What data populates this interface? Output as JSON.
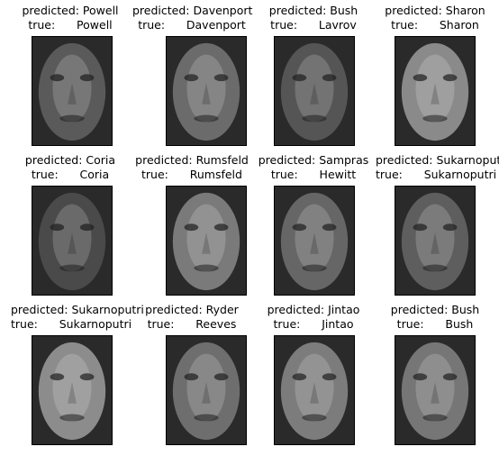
{
  "gallery": {
    "items": [
      {
        "predicted": "predicted: Powell",
        "true": "true:      Powell",
        "tone": "#5a5a5a"
      },
      {
        "predicted": "predicted: Davenport",
        "true": "true:      Davenport",
        "tone": "#6b6b6b"
      },
      {
        "predicted": "predicted: Bush",
        "true": "true:      Lavrov",
        "tone": "#555555"
      },
      {
        "predicted": "predicted: Sharon",
        "true": "true:      Sharon",
        "tone": "#8a8a8a"
      },
      {
        "predicted": "predicted: Coria",
        "true": "true:      Coria",
        "tone": "#4a4a4a"
      },
      {
        "predicted": "predicted: Rumsfeld",
        "true": "true:      Rumsfeld",
        "tone": "#7a7a7a"
      },
      {
        "predicted": "predicted: Sampras",
        "true": "true:      Hewitt",
        "tone": "#666666"
      },
      {
        "predicted": "predicted: Sukarnoputri",
        "true": "true:      Sukarnoputri",
        "tone": "#5e5e5e"
      },
      {
        "predicted": "predicted: Sukarnoputri",
        "true": "true:      Sukarnoputri",
        "tone": "#8c8c8c"
      },
      {
        "predicted": "predicted: Ryder",
        "true": "true:      Reeves",
        "tone": "#6e6e6e"
      },
      {
        "predicted": "predicted: Jintao",
        "true": "true:      Jintao",
        "tone": "#7c7c7c"
      },
      {
        "predicted": "predicted: Bush",
        "true": "true:      Bush",
        "tone": "#767676"
      }
    ]
  }
}
